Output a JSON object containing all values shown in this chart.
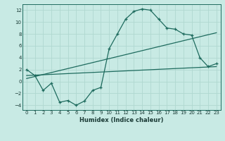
{
  "xlabel": "Humidex (Indice chaleur)",
  "ylabel": "",
  "background_color": "#c8eae4",
  "grid_color": "#b0d8d0",
  "line_color": "#1e6b5e",
  "xlim": [
    -0.5,
    23.5
  ],
  "ylim": [
    -4.8,
    13.0
  ],
  "xticks": [
    0,
    1,
    2,
    3,
    4,
    5,
    6,
    7,
    8,
    9,
    10,
    11,
    12,
    13,
    14,
    15,
    16,
    17,
    18,
    19,
    20,
    21,
    22,
    23
  ],
  "yticks": [
    -4,
    -2,
    0,
    2,
    4,
    6,
    8,
    10,
    12
  ],
  "line1_x": [
    0,
    1,
    2,
    3,
    4,
    5,
    6,
    7,
    8,
    9,
    10,
    11,
    12,
    13,
    14,
    15,
    16,
    17,
    18,
    19,
    20,
    21,
    22,
    23
  ],
  "line1_y": [
    2.0,
    1.0,
    -1.5,
    -0.3,
    -3.5,
    -3.2,
    -4.0,
    -3.3,
    -1.5,
    -1.0,
    5.5,
    8.0,
    10.5,
    11.8,
    12.2,
    12.0,
    10.5,
    9.0,
    8.8,
    8.0,
    7.8,
    4.0,
    2.5,
    3.0
  ],
  "line2_x": [
    0,
    23
  ],
  "line2_y": [
    1.0,
    2.5
  ],
  "line3_x": [
    0,
    23
  ],
  "line3_y": [
    0.5,
    8.2
  ],
  "marker": "+"
}
